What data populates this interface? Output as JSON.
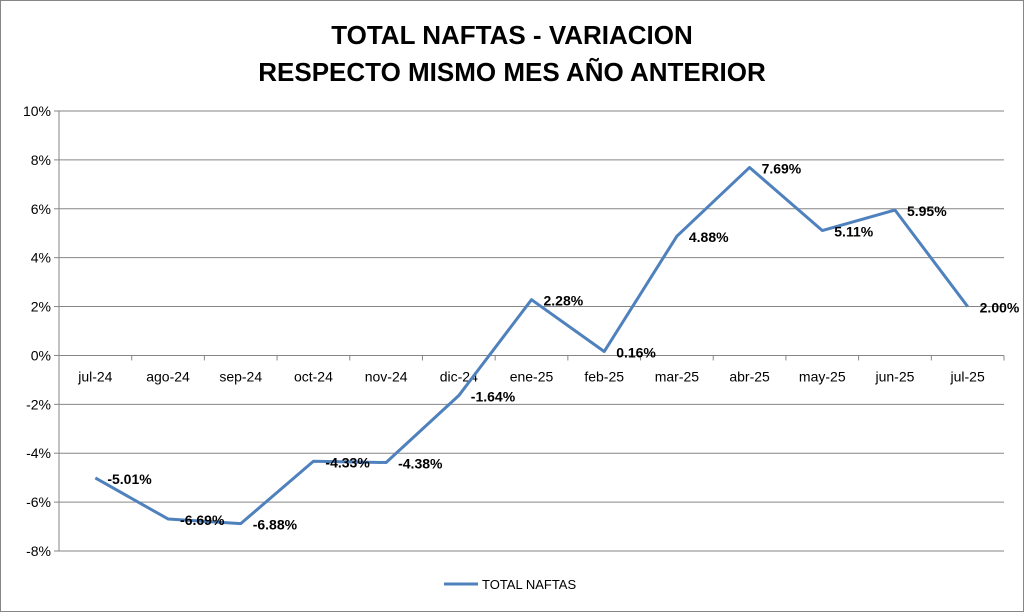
{
  "chart_data": {
    "type": "line",
    "title": [
      "TOTAL NAFTAS - VARIACION",
      "RESPECTO MISMO MES AÑO ANTERIOR"
    ],
    "categories": [
      "jul-24",
      "ago-24",
      "sep-24",
      "oct-24",
      "nov-24",
      "dic-24",
      "ene-25",
      "feb-25",
      "mar-25",
      "abr-25",
      "may-25",
      "jun-25",
      "jul-25"
    ],
    "series": [
      {
        "name": "TOTAL NAFTAS",
        "color": "#4f81bd",
        "values": [
          -5.01,
          -6.69,
          -6.88,
          -4.33,
          -4.38,
          -1.64,
          2.28,
          0.16,
          4.88,
          7.69,
          5.11,
          5.95,
          2.0
        ],
        "labels": [
          "-5.01%",
          "-6.69%",
          "-6.88%",
          "-4.33%",
          "-4.38%",
          "-1.64%",
          "2.28%",
          "0.16%",
          "4.88%",
          "7.69%",
          "5.11%",
          "5.95%",
          "2.00%"
        ]
      }
    ],
    "ylim": [
      -8,
      10
    ],
    "yticks": [
      -8,
      -6,
      -4,
      -2,
      0,
      2,
      4,
      6,
      8,
      10
    ],
    "ytick_labels": [
      "-8%",
      "-6%",
      "-4%",
      "-2%",
      "0%",
      "2%",
      "4%",
      "6%",
      "8%",
      "10%"
    ],
    "grid": true,
    "legend_position": "bottom"
  }
}
